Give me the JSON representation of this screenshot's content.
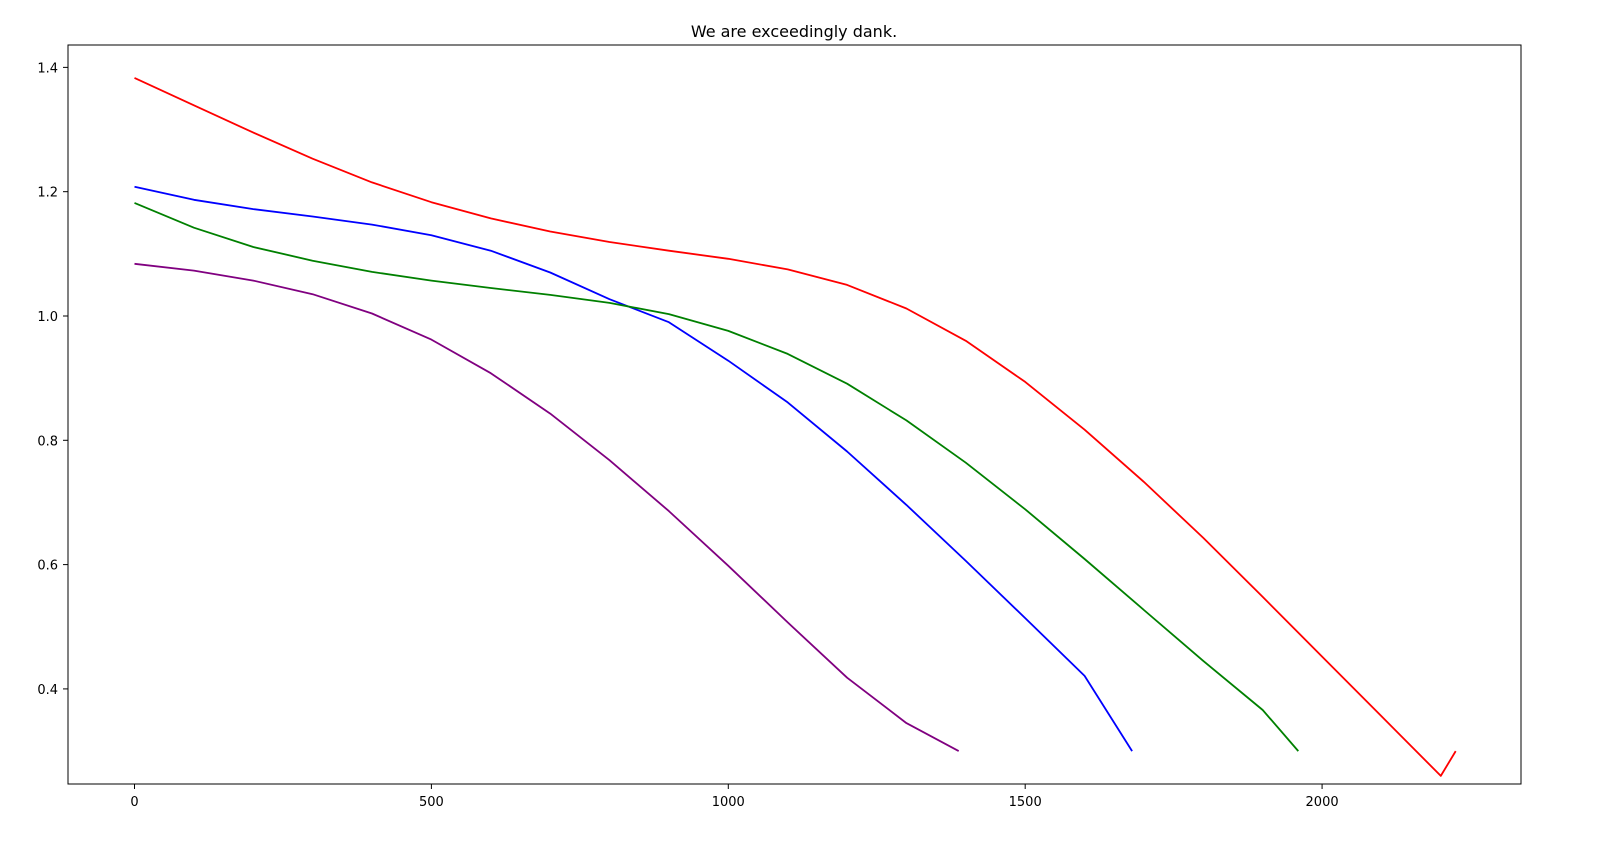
{
  "chart_data": {
    "type": "line",
    "title": "We are exceedingly dank.",
    "xlabel": "",
    "ylabel": "",
    "xlim": [
      -112,
      2335
    ],
    "ylim": [
      0.247,
      1.436
    ],
    "xticks": [
      0,
      500,
      1000,
      1500,
      2000
    ],
    "yticks": [
      0.4,
      0.6,
      0.8,
      1.0,
      1.2,
      1.4
    ],
    "xtick_labels": [
      "0",
      "500",
      "1000",
      "1500",
      "2000"
    ],
    "ytick_labels": [
      "0.4",
      "0.6",
      "0.8",
      "1.0",
      "1.2",
      "1.4"
    ],
    "grid": false,
    "series": [
      {
        "color": "#ff0000",
        "x": [
          0,
          100,
          200,
          300,
          400,
          500,
          600,
          700,
          800,
          900,
          1000,
          1100,
          1200,
          1300,
          1400,
          1500,
          1600,
          1700,
          1800,
          1900,
          2000,
          2100,
          2200,
          2225
        ],
        "y": [
          1.383,
          1.339,
          1.295,
          1.253,
          1.215,
          1.183,
          1.157,
          1.136,
          1.119,
          1.105,
          1.092,
          1.075,
          1.05,
          1.012,
          0.96,
          0.894,
          0.817,
          0.733,
          0.643,
          0.548,
          0.452,
          0.356,
          0.26,
          0.3
        ]
      },
      {
        "color": "#0000ff",
        "x": [
          0,
          100,
          200,
          300,
          400,
          500,
          600,
          700,
          800,
          900,
          1000,
          1100,
          1200,
          1300,
          1400,
          1500,
          1600,
          1680
        ],
        "y": [
          1.208,
          1.187,
          1.172,
          1.16,
          1.147,
          1.13,
          1.105,
          1.07,
          1.027,
          0.99,
          0.928,
          0.861,
          0.782,
          0.696,
          0.606,
          0.514,
          0.421,
          0.3
        ]
      },
      {
        "color": "#008000",
        "x": [
          0,
          100,
          200,
          300,
          400,
          500,
          600,
          700,
          800,
          900,
          1000,
          1100,
          1200,
          1300,
          1400,
          1500,
          1600,
          1700,
          1800,
          1900,
          1960
        ],
        "y": [
          1.182,
          1.142,
          1.111,
          1.089,
          1.071,
          1.057,
          1.045,
          1.034,
          1.021,
          1.003,
          0.976,
          0.939,
          0.891,
          0.832,
          0.764,
          0.689,
          0.609,
          0.527,
          0.445,
          0.366,
          0.3
        ]
      },
      {
        "color": "#800080",
        "x": [
          0,
          100,
          200,
          300,
          400,
          500,
          600,
          700,
          800,
          900,
          1000,
          1100,
          1200,
          1300,
          1388
        ],
        "y": [
          1.084,
          1.073,
          1.057,
          1.035,
          1.004,
          0.962,
          0.908,
          0.843,
          0.768,
          0.686,
          0.598,
          0.507,
          0.418,
          0.345,
          0.3
        ]
      }
    ]
  }
}
